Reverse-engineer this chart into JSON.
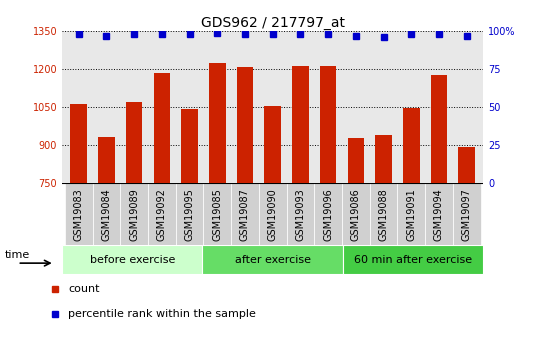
{
  "title": "GDS962 / 217797_at",
  "categories": [
    "GSM19083",
    "GSM19084",
    "GSM19089",
    "GSM19092",
    "GSM19095",
    "GSM19085",
    "GSM19087",
    "GSM19090",
    "GSM19093",
    "GSM19096",
    "GSM19086",
    "GSM19088",
    "GSM19091",
    "GSM19094",
    "GSM19097"
  ],
  "bar_values": [
    1063,
    930,
    1068,
    1185,
    1040,
    1225,
    1207,
    1052,
    1213,
    1213,
    928,
    938,
    1044,
    1178,
    893
  ],
  "percentile_values": [
    98,
    97,
    98,
    98,
    98,
    99,
    98,
    98,
    98,
    98,
    97,
    96,
    98,
    98,
    97
  ],
  "bar_color": "#cc2200",
  "percentile_color": "#0000cc",
  "ylim_left": [
    750,
    1350
  ],
  "ylim_right": [
    0,
    100
  ],
  "yticks_left": [
    750,
    900,
    1050,
    1200,
    1350
  ],
  "yticks_right": [
    0,
    25,
    50,
    75,
    100
  ],
  "groups": [
    {
      "label": "before exercise",
      "start": 0,
      "end": 5,
      "color": "#ccffcc"
    },
    {
      "label": "after exercise",
      "start": 5,
      "end": 10,
      "color": "#66dd66"
    },
    {
      "label": "60 min after exercise",
      "start": 10,
      "end": 15,
      "color": "#44cc44"
    }
  ],
  "time_label": "time",
  "legend_count_label": "count",
  "legend_percentile_label": "percentile rank within the sample",
  "background_color": "#ffffff",
  "plot_bg_color": "#e8e8e8",
  "xtick_bg_color": "#d0d0d0",
  "grid_color": "#000000",
  "title_fontsize": 10,
  "tick_fontsize": 7,
  "group_fontsize": 8
}
